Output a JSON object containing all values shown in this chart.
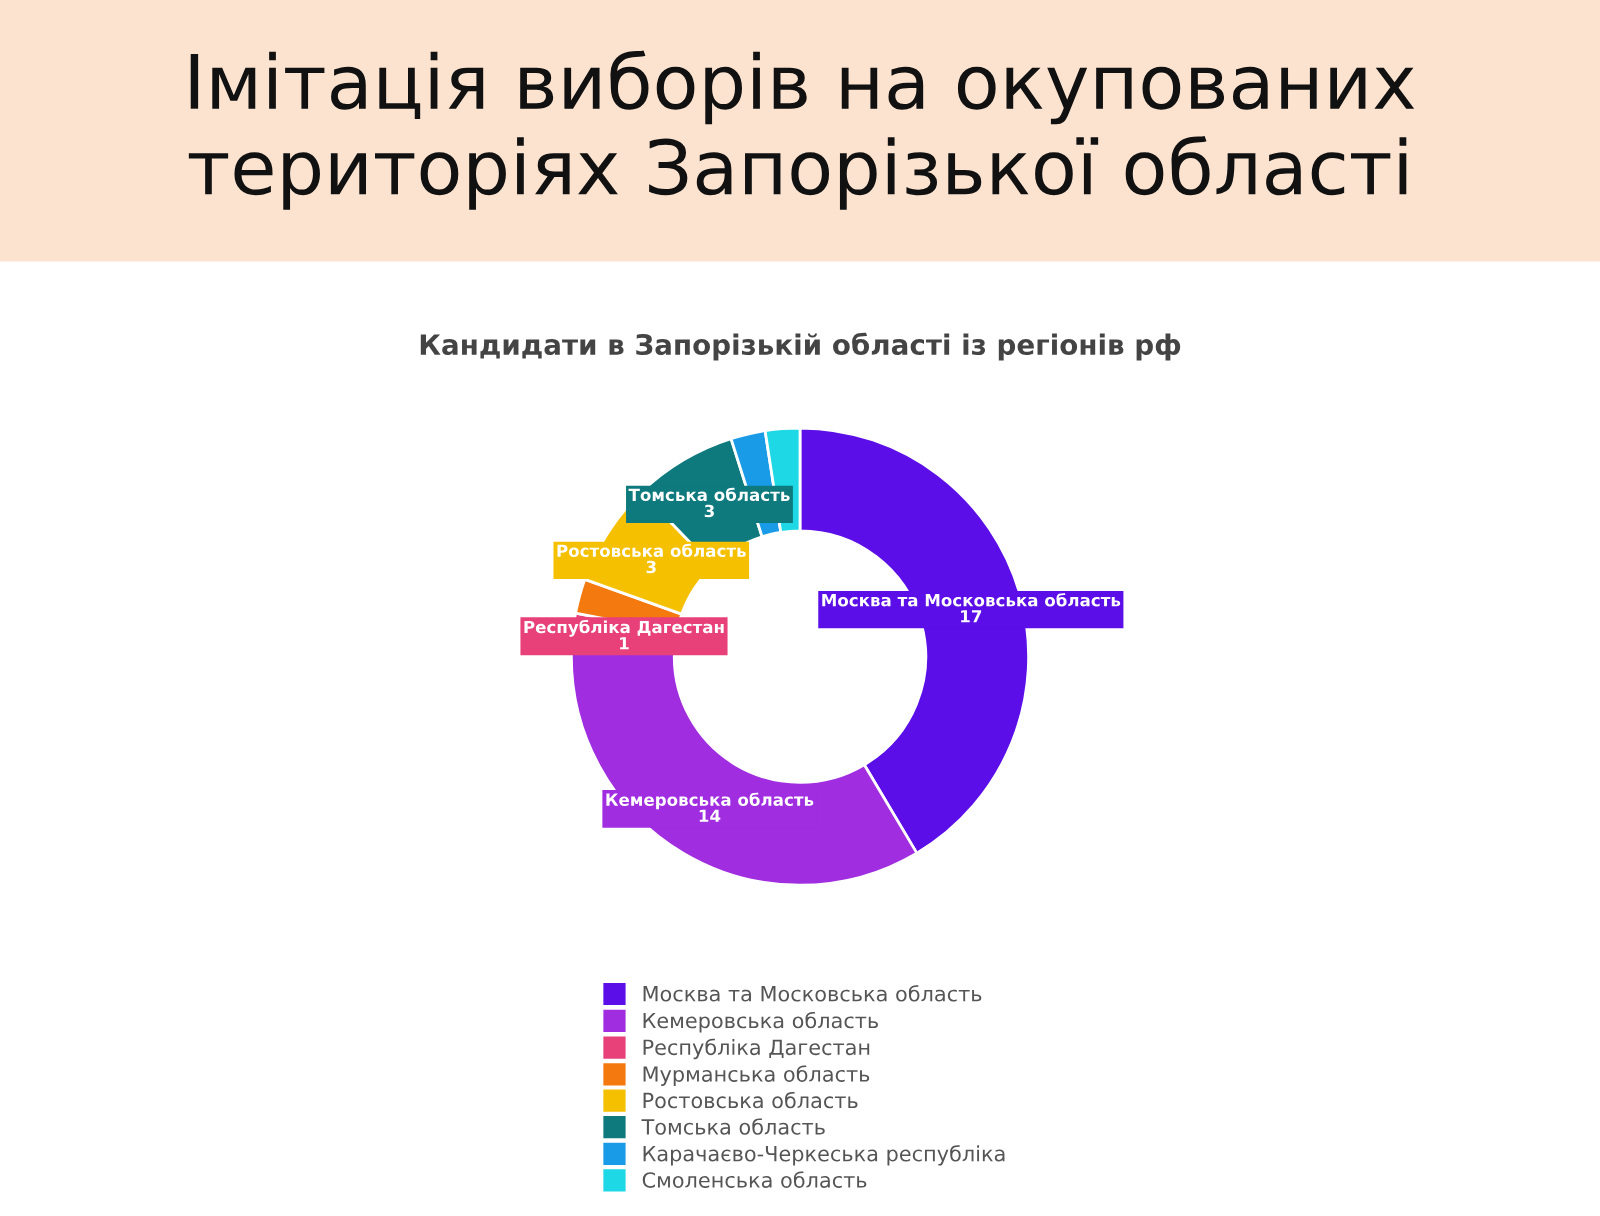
{
  "chart_data": {
    "type": "donut",
    "title": "Імітація виборів на окупованих територіях Запорізької області",
    "subtitle": "Кандидати в Запорізькій області із регіонів рф",
    "categories": [
      "Москва та Московська область",
      "Кемеровська область",
      "Республіка Дагестан",
      "Мурманська область",
      "Ростовська область",
      "Томська область",
      "Карачаєво-Черкеська республіка",
      "Смоленська область"
    ],
    "values": [
      17,
      14,
      1,
      1,
      3,
      3,
      1,
      1
    ],
    "value_labels": [
      "17",
      "14",
      "1",
      null,
      "3",
      "3",
      null,
      null
    ],
    "colors": [
      "#5b0ee8",
      "#a02de0",
      "#e8417a",
      "#f47a10",
      "#f5c000",
      "#0e7a7d",
      "#1a9be8",
      "#1ed8e6"
    ],
    "legend": "bottom"
  }
}
